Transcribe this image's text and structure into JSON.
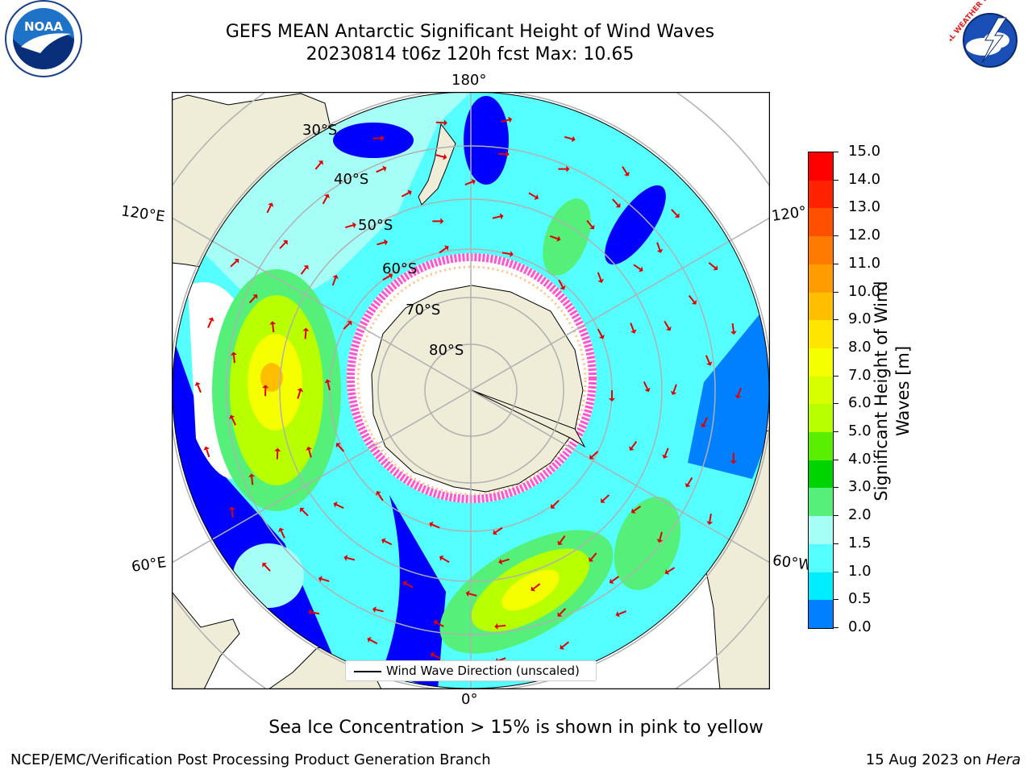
{
  "title": {
    "line1": "GEFS MEAN Antarctic Significant Height of Wind Waves",
    "line2": "20230814 t06z 120h fcst   Max: 10.65"
  },
  "logos": {
    "noaa_text": "NOAA",
    "nws_text": "NATIONAL WEATHER SERVICE"
  },
  "map": {
    "longitude_labels": {
      "top": "180°",
      "bottom": "0°",
      "upper_left": "120°E",
      "upper_right": "120°",
      "lower_left": "60°E",
      "lower_right": "60°W"
    },
    "latitude_labels": [
      "30°S",
      "40°S",
      "50°S",
      "60°S",
      "70°S",
      "80°S"
    ],
    "legend_label": "Wind Wave Direction (unscaled)"
  },
  "colorbar": {
    "label_line1": "Significant Height of Wind",
    "label_line2": "Waves [m]",
    "ticks": [
      "15.0",
      "14.0",
      "13.0",
      "12.0",
      "11.0",
      "10.0",
      "9.0",
      "8.0",
      "7.0",
      "6.0",
      "5.0",
      "4.0",
      "3.0",
      "2.0",
      "1.5",
      "1.0",
      "0.5",
      "0.0"
    ],
    "colors": [
      "#ff0000",
      "#ff2200",
      "#ff5000",
      "#ff7a00",
      "#ff9d00",
      "#ffbf00",
      "#ffe600",
      "#f5ff00",
      "#d8ff00",
      "#b8ff00",
      "#5aee00",
      "#00d400",
      "#55f07a",
      "#a6fff6",
      "#55ffff",
      "#00ecff",
      "#0080ff",
      "#0000ff"
    ]
  },
  "notes": {
    "sea_ice": "Sea Ice Concentration > 15% is shown in pink to yellow"
  },
  "footer": {
    "left": "NCEP/EMC/Verification Post Processing Product Generation Branch",
    "right_prefix": "15 Aug 2023 on ",
    "right_host": "Hera"
  }
}
